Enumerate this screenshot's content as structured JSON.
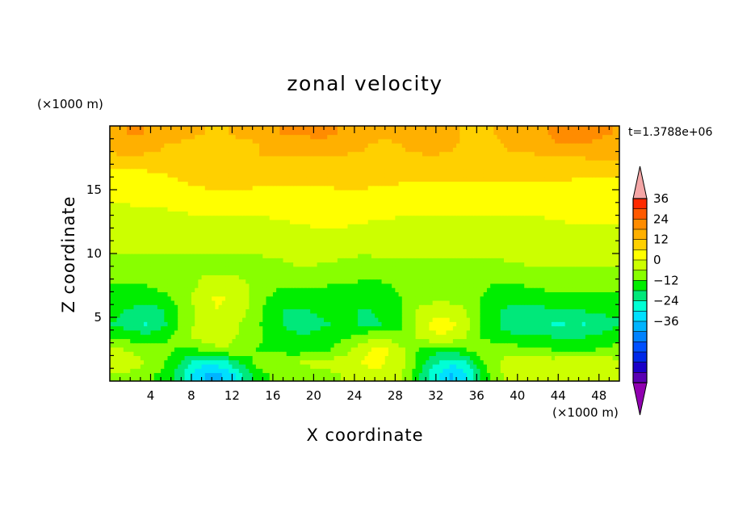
{
  "chart_data": {
    "type": "heatmap",
    "title": "zonal velocity",
    "xlabel": "X coordinate",
    "ylabel": "Z coordinate",
    "x_unit": "(×1000 m)",
    "y_unit": "(×1000 m)",
    "time_label": "t=1.3788e+06",
    "xlim": [
      0,
      50
    ],
    "ylim": [
      0,
      20
    ],
    "x_ticks": [
      4,
      8,
      12,
      16,
      20,
      24,
      28,
      32,
      36,
      40,
      44,
      48
    ],
    "y_ticks": [
      5,
      10,
      15
    ],
    "colorbar": {
      "levels": [
        -36,
        -30,
        -24,
        -18,
        -12,
        -6,
        0,
        6,
        12,
        18,
        24,
        30,
        36
      ],
      "tick_labels": [
        "36",
        "24",
        "12",
        "0",
        "−12",
        "−24",
        "−36"
      ],
      "tick_values": [
        36,
        24,
        12,
        0,
        -12,
        -24,
        -36
      ],
      "colors_top_to_bottom": [
        "#f4a6a6",
        "#ff2a00",
        "#ff5a00",
        "#ff8c00",
        "#ffb000",
        "#ffd000",
        "#ffff00",
        "#ccff00",
        "#88ff00",
        "#00ee00",
        "#00e87a",
        "#00ffd5",
        "#00e0ff",
        "#00b4ff",
        "#0082ff",
        "#0050ff",
        "#0028e8",
        "#1a00c8",
        "#5a00b4",
        "#9000b0"
      ]
    },
    "field": {
      "x_step": 1,
      "z_step": 1,
      "values": [
        [
          0,
          0,
          -2,
          -3,
          -6,
          -8,
          -13,
          -20,
          -26,
          -31,
          -31,
          -28,
          -22,
          -14,
          -8,
          -6,
          -4,
          -3,
          -3,
          -2,
          -1,
          -1,
          0,
          2,
          4,
          5,
          5,
          3,
          1,
          -4,
          -12,
          -20,
          -26,
          -30,
          -28,
          -20,
          -11,
          -4,
          0,
          3,
          5,
          5,
          4,
          4,
          5,
          6,
          6,
          5,
          4,
          3
        ],
        [
          4,
          3,
          2,
          0,
          -3,
          -6,
          -10,
          -15,
          -20,
          -23,
          -22,
          -18,
          -13,
          -8,
          -4,
          -2,
          -1,
          0,
          0,
          1,
          1,
          2,
          3,
          4,
          6,
          7,
          7,
          5,
          2,
          -3,
          -9,
          -15,
          -19,
          -22,
          -20,
          -14,
          -7,
          -2,
          1,
          3,
          4,
          4,
          3,
          3,
          4,
          5,
          5,
          4,
          3,
          2
        ],
        [
          1,
          0,
          -1,
          -2,
          -3,
          -4,
          -6,
          -8,
          -6,
          -3,
          -1,
          0,
          -2,
          -4,
          -6,
          -7,
          -8,
          -9,
          -9,
          -8,
          -7,
          -6,
          -4,
          -1,
          3,
          6,
          7,
          6,
          2,
          -3,
          -7,
          -9,
          -10,
          -9,
          -7,
          -4,
          -2,
          -1,
          -2,
          -3,
          -4,
          -5,
          -5,
          -6,
          -6,
          -7,
          -7,
          -6,
          -5,
          -4
        ],
        [
          -6,
          -8,
          -9,
          -10,
          -9,
          -7,
          -4,
          -1,
          1,
          3,
          3,
          2,
          0,
          -2,
          -5,
          -7,
          -9,
          -10,
          -11,
          -11,
          -10,
          -9,
          -8,
          -6,
          -4,
          -2,
          -1,
          -2,
          -4,
          -3,
          2,
          5,
          6,
          5,
          2,
          -2,
          -6,
          -9,
          -10,
          -11,
          -11,
          -11,
          -11,
          -12,
          -12,
          -12,
          -12,
          -11,
          -10,
          -9
        ],
        [
          -12,
          -14,
          -16,
          -18,
          -16,
          -12,
          -7,
          -2,
          1,
          3,
          4,
          3,
          1,
          -2,
          -5,
          -8,
          -11,
          -13,
          -14,
          -14,
          -13,
          -12,
          -11,
          -11,
          -12,
          -13,
          -12,
          -10,
          -7,
          -3,
          3,
          7,
          8,
          7,
          4,
          -1,
          -6,
          -10,
          -13,
          -14,
          -14,
          -15,
          -17,
          -18,
          -18,
          -17,
          -18,
          -17,
          -15,
          -13
        ],
        [
          -11,
          -12,
          -14,
          -15,
          -14,
          -11,
          -7,
          -3,
          1,
          4,
          6,
          5,
          3,
          0,
          -4,
          -8,
          -11,
          -13,
          -13,
          -12,
          -11,
          -10,
          -10,
          -11,
          -12,
          -12,
          -11,
          -9,
          -6,
          -2,
          2,
          4,
          5,
          4,
          2,
          -2,
          -6,
          -9,
          -12,
          -14,
          -15,
          -15,
          -14,
          -13,
          -12,
          -12,
          -12,
          -11,
          -11,
          -10
        ],
        [
          -9,
          -9,
          -9,
          -8,
          -8,
          -7,
          -5,
          -2,
          2,
          5,
          7,
          6,
          4,
          1,
          -3,
          -6,
          -8,
          -9,
          -9,
          -8,
          -8,
          -8,
          -9,
          -10,
          -11,
          -11,
          -10,
          -8,
          -6,
          -4,
          -3,
          -2,
          -2,
          -2,
          -3,
          -4,
          -6,
          -8,
          -9,
          -10,
          -10,
          -9,
          -8,
          -8,
          -7,
          -7,
          -7,
          -7,
          -7,
          -7
        ],
        [
          -6,
          -6,
          -6,
          -6,
          -5,
          -4,
          -3,
          -2,
          0,
          2,
          4,
          4,
          3,
          1,
          -2,
          -4,
          -5,
          -5,
          -5,
          -5,
          -5,
          -6,
          -7,
          -7,
          -7,
          -7,
          -7,
          -6,
          -5,
          -4,
          -4,
          -4,
          -3,
          -3,
          -4,
          -4,
          -5,
          -6,
          -6,
          -6,
          -6,
          -5,
          -5,
          -4,
          -4,
          -4,
          -4,
          -4,
          -4,
          -4
        ],
        [
          -3,
          -3,
          -4,
          -4,
          -4,
          -3,
          -3,
          -2,
          -1,
          0,
          0,
          0,
          -1,
          -2,
          -3,
          -3,
          -3,
          -3,
          -2,
          -2,
          -2,
          -3,
          -3,
          -3,
          -4,
          -4,
          -4,
          -4,
          -3,
          -3,
          -3,
          -2,
          -2,
          -2,
          -2,
          -3,
          -3,
          -3,
          -2,
          -2,
          -2,
          -1,
          -1,
          -1,
          -1,
          -1,
          -1,
          -1,
          -1,
          -1
        ],
        [
          -1,
          -1,
          -1,
          -1,
          -1,
          -1,
          -1,
          -1,
          -2,
          -2,
          -2,
          -2,
          -2,
          -2,
          -2,
          -1,
          -1,
          1,
          2,
          2,
          1,
          1,
          0,
          0,
          -1,
          -1,
          -1,
          -1,
          -1,
          -1,
          -1,
          -1,
          0,
          0,
          0,
          -1,
          -1,
          -1,
          0,
          1,
          1,
          2,
          2,
          2,
          1,
          1,
          1,
          1,
          2,
          2
        ],
        [
          1,
          1,
          1,
          1,
          1,
          1,
          1,
          2,
          2,
          2,
          2,
          2,
          2,
          2,
          3,
          3,
          3,
          3,
          3,
          3,
          3,
          3,
          2,
          2,
          2,
          2,
          3,
          3,
          3,
          3,
          3,
          3,
          3,
          3,
          3,
          3,
          3,
          3,
          4,
          4,
          4,
          4,
          4,
          4,
          3,
          3,
          3,
          3,
          3,
          3
        ],
        [
          3,
          3,
          3,
          3,
          3,
          3,
          3,
          3,
          4,
          4,
          4,
          4,
          4,
          4,
          4,
          4,
          4,
          4,
          4,
          4,
          4,
          4,
          4,
          4,
          4,
          4,
          4,
          4,
          4,
          4,
          4,
          4,
          4,
          4,
          4,
          4,
          4,
          4,
          4,
          4,
          4,
          4,
          4,
          4,
          4,
          4,
          4,
          4,
          4,
          4
        ],
        [
          4,
          4,
          4,
          4,
          4,
          4,
          4,
          4,
          5,
          5,
          5,
          5,
          5,
          5,
          5,
          5,
          6,
          6,
          7,
          7,
          8,
          8,
          8,
          7,
          7,
          6,
          6,
          6,
          5,
          5,
          5,
          5,
          5,
          5,
          5,
          5,
          5,
          5,
          5,
          5,
          5,
          5,
          5,
          6,
          6,
          7,
          7,
          7,
          7,
          7
        ],
        [
          5,
          5,
          6,
          6,
          6,
          6,
          7,
          7,
          7,
          7,
          7,
          7,
          8,
          8,
          8,
          8,
          8,
          8,
          8,
          8,
          8,
          8,
          8,
          8,
          8,
          8,
          8,
          8,
          7,
          7,
          7,
          7,
          7,
          7,
          7,
          7,
          7,
          8,
          8,
          8,
          8,
          8,
          8,
          9,
          9,
          10,
          10,
          10,
          10,
          10
        ],
        [
          7,
          7,
          8,
          8,
          8,
          8,
          8,
          8,
          8,
          9,
          9,
          9,
          9,
          9,
          9,
          9,
          9,
          9,
          9,
          9,
          9,
          9,
          10,
          10,
          10,
          10,
          10,
          10,
          10,
          10,
          10,
          10,
          10,
          10,
          10,
          10,
          10,
          10,
          10,
          10,
          10,
          10,
          10,
          11,
          11,
          11,
          11,
          11,
          11,
          11
        ],
        [
          9,
          9,
          9,
          9,
          10,
          10,
          11,
          12,
          13,
          14,
          14,
          14,
          14,
          14,
          13,
          13,
          13,
          13,
          13,
          13,
          13,
          13,
          14,
          14,
          14,
          13,
          13,
          13,
          12,
          12,
          12,
          12,
          12,
          12,
          12,
          12,
          12,
          12,
          12,
          12,
          12,
          12,
          12,
          12,
          11,
          11,
          11,
          11,
          11,
          11
        ],
        [
          12,
          12,
          12,
          12,
          13,
          13,
          14,
          15,
          16,
          17,
          17,
          17,
          17,
          17,
          16,
          16,
          16,
          16,
          16,
          16,
          16,
          16,
          16,
          16,
          16,
          16,
          16,
          16,
          16,
          16,
          16,
          16,
          16,
          16,
          16,
          16,
          16,
          16,
          16,
          16,
          16,
          16,
          15,
          15,
          15,
          14,
          14,
          14,
          14,
          14
        ],
        [
          17,
          17,
          17,
          17,
          17,
          17,
          17,
          17,
          17,
          17,
          18,
          18,
          18,
          18,
          18,
          18,
          18,
          18,
          18,
          18,
          18,
          18,
          17,
          17,
          17,
          17,
          17,
          17,
          17,
          17,
          17,
          17,
          17,
          17,
          17,
          17,
          17,
          17,
          17,
          17,
          17,
          17,
          18,
          18,
          18,
          18,
          18,
          19,
          19,
          19
        ],
        [
          20,
          21,
          22,
          20,
          19,
          18,
          18,
          17,
          16,
          16,
          16,
          16,
          17,
          17,
          18,
          20,
          21,
          22,
          22,
          22,
          23,
          22,
          21,
          20,
          19,
          18,
          17,
          17,
          18,
          19,
          20,
          21,
          20,
          19,
          17,
          16,
          16,
          17,
          18,
          19,
          20,
          20,
          21,
          23,
          24,
          24,
          24,
          23,
          22,
          21
        ],
        [
          24,
          24,
          25,
          24,
          22,
          21,
          20,
          19,
          19,
          18,
          18,
          18,
          19,
          19,
          20,
          22,
          24,
          25,
          25,
          25,
          26,
          25,
          24,
          23,
          22,
          21,
          20,
          20,
          20,
          21,
          22,
          22,
          22,
          20,
          18,
          17,
          17,
          18,
          19,
          21,
          22,
          22,
          23,
          25,
          27,
          27,
          27,
          26,
          25,
          24
        ]
      ]
    }
  }
}
